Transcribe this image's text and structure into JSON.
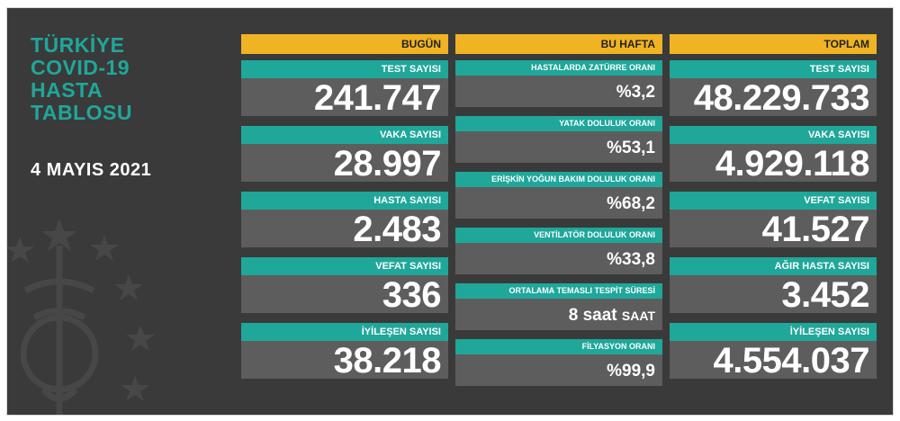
{
  "title_lines": [
    "TÜRKİYE",
    "COVID-19",
    "HASTA",
    "TABLOSU"
  ],
  "date": "4 MAYIS 2021",
  "columns": {
    "today": {
      "header": "BUGÜN",
      "cards": [
        {
          "label": "TEST SAYISI",
          "value": "241.747"
        },
        {
          "label": "VAKA SAYISI",
          "value": "28.997"
        },
        {
          "label": "HASTA SAYISI",
          "value": "2.483"
        },
        {
          "label": "VEFAT SAYISI",
          "value": "336"
        },
        {
          "label": "İYİLEŞEN SAYISI",
          "value": "38.218"
        }
      ]
    },
    "week": {
      "header": "BU HAFTA",
      "cards": [
        {
          "label": "HASTALARDA ZATÜRRE ORANI",
          "value": "%3,2"
        },
        {
          "label": "YATAK DOLULUK ORANI",
          "value": "%53,1"
        },
        {
          "label": "ERİŞKİN YOĞUN BAKIM DOLULUK ORANI",
          "value": "%68,2"
        },
        {
          "label": "VENTİLATÖR DOLULUK ORANI",
          "value": "%33,8"
        },
        {
          "label": "ORTALAMA TEMASLI TESPİT SÜRESİ",
          "value": "8 saat",
          "unit": "SAAT"
        },
        {
          "label": "FİLYASYON ORANI",
          "value": "%99,9"
        }
      ]
    },
    "total": {
      "header": "TOPLAM",
      "cards": [
        {
          "label": "TEST SAYISI",
          "value": "48.229.733"
        },
        {
          "label": "VAKA SAYISI",
          "value": "4.929.118"
        },
        {
          "label": "VEFAT SAYISI",
          "value": "41.527"
        },
        {
          "label": "AĞIR HASTA SAYISI",
          "value": "3.452"
        },
        {
          "label": "İYİLEŞEN SAYISI",
          "value": "4.554.037"
        }
      ]
    }
  },
  "colors": {
    "background": "#3a3a3a",
    "header": "#f0b323",
    "label": "#1fa79a",
    "value_box": "#5d5d5d"
  }
}
